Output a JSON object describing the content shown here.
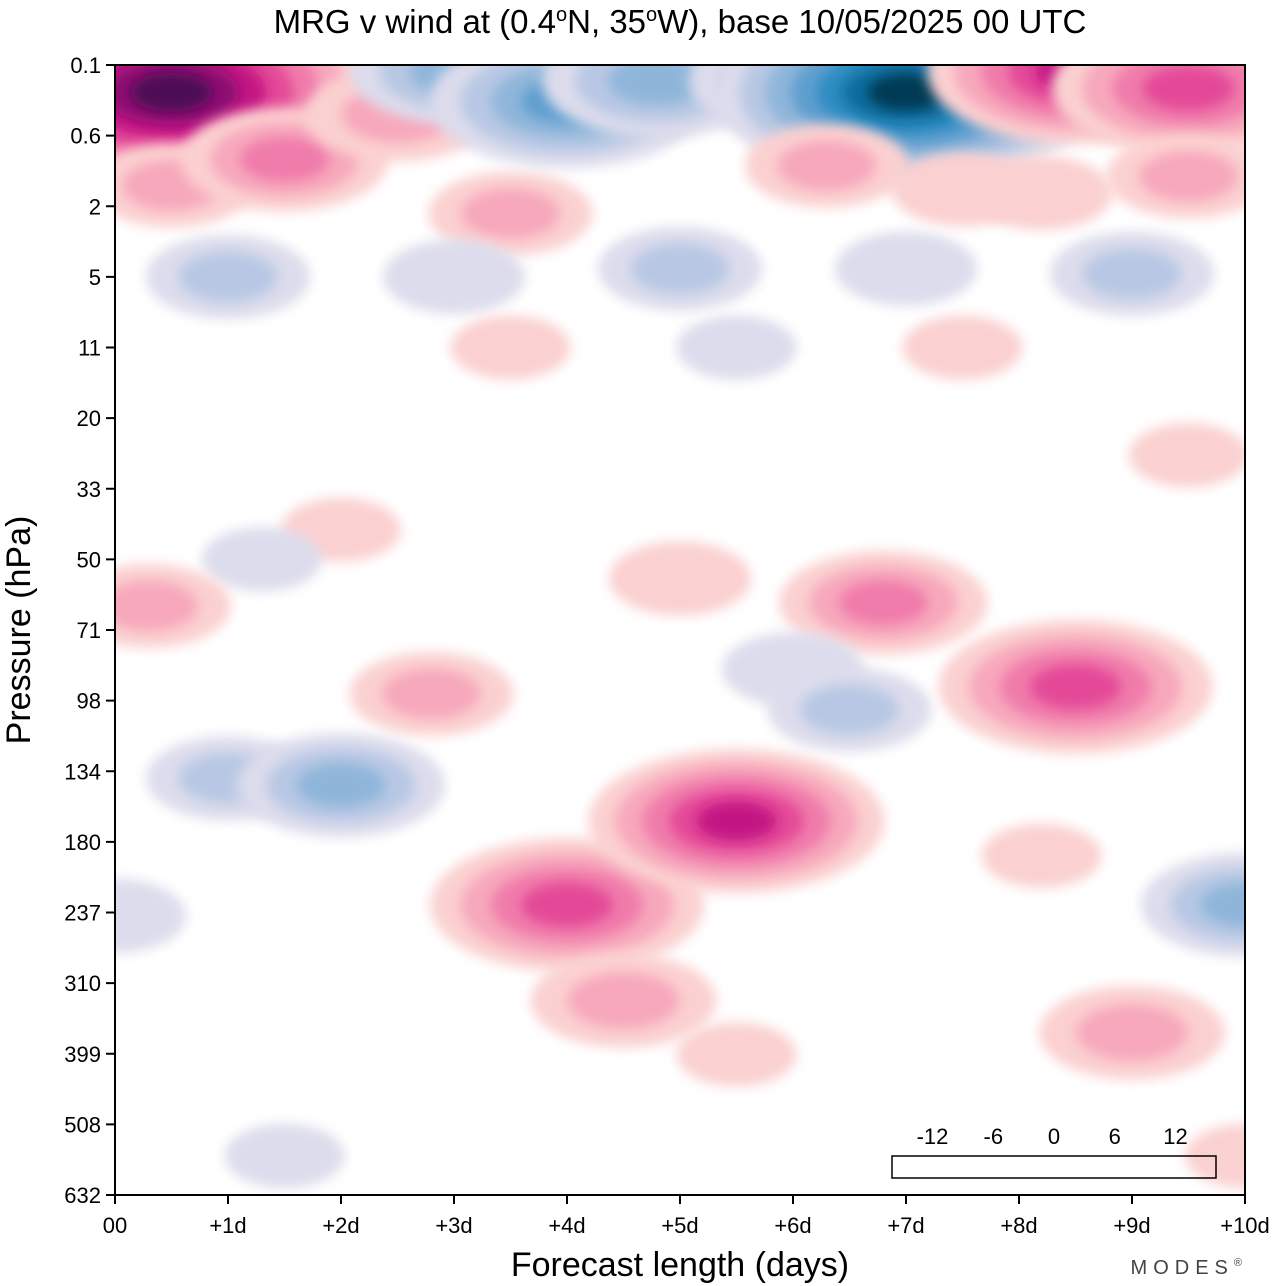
{
  "chart_data": {
    "type": "heatmap",
    "title": "MRG v wind at (0.4°N, 35°W),  base 10/05/2025  00 UTC",
    "title_parts": {
      "lead": "MRG v wind at (0.4",
      "deg1": "o",
      "mid": "N, 35",
      "deg2": "o",
      "tail": "W),  base 10/05/2025  00 UTC"
    },
    "xlabel": "Forecast length (days)",
    "ylabel": "Pressure (hPa)",
    "x_ticks": [
      "00",
      "+1d",
      "+2d",
      "+3d",
      "+4d",
      "+5d",
      "+6d",
      "+7d",
      "+8d",
      "+9d",
      "+10d"
    ],
    "xlim": [
      0,
      10
    ],
    "y_ticks": [
      "0.1",
      "0.6",
      "2",
      "5",
      "11",
      "20",
      "33",
      "50",
      "71",
      "98",
      "134",
      "180",
      "237",
      "310",
      "399",
      "508",
      "632"
    ],
    "y_levels": [
      0.1,
      0.6,
      2,
      5,
      11,
      20,
      33,
      50,
      71,
      98,
      134,
      180,
      237,
      310,
      399,
      508,
      632
    ],
    "ylim": [
      0.1,
      632
    ],
    "colorbar": {
      "labels": [
        "-12",
        "-6",
        "0",
        "6",
        "12"
      ],
      "label_values": [
        -12,
        -6,
        0,
        6,
        12
      ],
      "levels": [
        -16,
        -14,
        -12,
        -10,
        -8,
        -6,
        -4,
        -2,
        2,
        4,
        6,
        8,
        10,
        12,
        14,
        16
      ],
      "colors": [
        "#063a55",
        "#0e6d9e",
        "#2f8cc2",
        "#5f9fcf",
        "#8fb6da",
        "#b8c8e4",
        "#dcdcec",
        "#ffffff",
        "#fbd0d0",
        "#f7a8bc",
        "#f07cab",
        "#e44898",
        "#c31483",
        "#8e0b72",
        "#4d0a55"
      ]
    },
    "features": [
      {
        "x": 0.5,
        "p": 0.2,
        "v": 15
      },
      {
        "x": 0.5,
        "p": 1.4,
        "v": 4
      },
      {
        "x": 1.5,
        "p": 0.9,
        "v": 6
      },
      {
        "x": 2.5,
        "p": 0.35,
        "v": 5
      },
      {
        "x": 3.5,
        "p": 2.2,
        "v": 4
      },
      {
        "x": 3.0,
        "p": 0.12,
        "v": -6
      },
      {
        "x": 4.0,
        "p": 0.25,
        "v": -9
      },
      {
        "x": 4.8,
        "p": 0.15,
        "v": -7
      },
      {
        "x": 6.0,
        "p": 0.15,
        "v": -6
      },
      {
        "x": 7.0,
        "p": 0.2,
        "v": -14
      },
      {
        "x": 6.3,
        "p": 1.0,
        "v": 4
      },
      {
        "x": 7.5,
        "p": 1.5,
        "v": 3
      },
      {
        "x": 8.5,
        "p": 0.12,
        "v": 10
      },
      {
        "x": 9.5,
        "p": 0.18,
        "v": 9
      },
      {
        "x": 9.5,
        "p": 1.2,
        "v": 4
      },
      {
        "x": 8.2,
        "p": 1.6,
        "v": 3
      },
      {
        "x": 1.0,
        "p": 5,
        "v": -4
      },
      {
        "x": 3.0,
        "p": 5,
        "v": -3
      },
      {
        "x": 5.0,
        "p": 4.5,
        "v": -4
      },
      {
        "x": 7.0,
        "p": 4.5,
        "v": -3
      },
      {
        "x": 9.0,
        "p": 4.8,
        "v": -4
      },
      {
        "x": 3.5,
        "p": 11,
        "v": 2
      },
      {
        "x": 5.5,
        "p": 11,
        "v": -2
      },
      {
        "x": 7.5,
        "p": 11,
        "v": 2
      },
      {
        "x": 9.5,
        "p": 26,
        "v": 2
      },
      {
        "x": 2.0,
        "p": 42,
        "v": 2
      },
      {
        "x": 1.3,
        "p": 50,
        "v": -2
      },
      {
        "x": 0.3,
        "p": 63,
        "v": 4
      },
      {
        "x": 5.0,
        "p": 55,
        "v": 3
      },
      {
        "x": 6.8,
        "p": 62,
        "v": 6
      },
      {
        "x": 8.5,
        "p": 92,
        "v": 9
      },
      {
        "x": 2.8,
        "p": 95,
        "v": 4
      },
      {
        "x": 6.0,
        "p": 85,
        "v": -3
      },
      {
        "x": 6.5,
        "p": 102,
        "v": -4
      },
      {
        "x": 1.0,
        "p": 138,
        "v": -4
      },
      {
        "x": 2.0,
        "p": 142,
        "v": -6
      },
      {
        "x": 4.0,
        "p": 230,
        "v": 9
      },
      {
        "x": 5.5,
        "p": 165,
        "v": 10
      },
      {
        "x": 4.5,
        "p": 330,
        "v": 5
      },
      {
        "x": 5.5,
        "p": 400,
        "v": 2
      },
      {
        "x": 9.0,
        "p": 370,
        "v": 5
      },
      {
        "x": 10.0,
        "p": 230,
        "v": -6
      },
      {
        "x": 0.0,
        "p": 240,
        "v": -3
      },
      {
        "x": 1.5,
        "p": 560,
        "v": -2
      },
      {
        "x": 8.2,
        "p": 190,
        "v": 2
      },
      {
        "x": 10.0,
        "p": 560,
        "v": 2
      }
    ]
  },
  "watermark": "MODES",
  "watermark_mark": "®"
}
